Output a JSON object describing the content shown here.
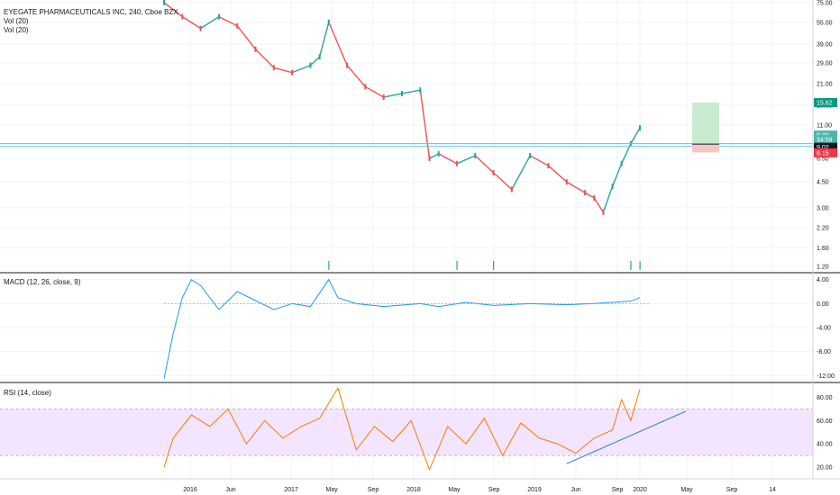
{
  "colors": {
    "up": "#26a69a",
    "down": "#ef5350",
    "macd_line": "#2196f3",
    "signal_line": "#ff6d00",
    "rsi_line": "#f57c00",
    "rsi_band": "#f3e5ff",
    "hline": "#4fc3f7",
    "trendline": "#4a90c8",
    "grid": "#f0f3fa",
    "separator": "#131722"
  },
  "chart_data": [
    {
      "type": "line",
      "panel": "price",
      "title": "EYEGATE PHARMACEUTICALS INC, 240, Cboe BZX",
      "indicators": [
        "Vol (20)",
        "Vol (20)"
      ],
      "y_scale": "log",
      "ylim": [
        1.1,
        78
      ],
      "y_ticks": [
        "75.00",
        "55.00",
        "39.00",
        "29.00",
        "21.00",
        "15.00",
        "11.00",
        "6.50",
        "4.50",
        "3.00",
        "2.20",
        "1.60",
        "1.20"
      ],
      "x_ticks": [
        "2016",
        "Jun",
        "2017",
        "May",
        "Sep",
        "2018",
        "May",
        "Sep",
        "2019",
        "Jun",
        "Sep",
        "2020",
        "May",
        "Sep",
        "14"
      ],
      "series": [
        {
          "x": [
            "2015-09",
            "2015-11",
            "2016-01",
            "2016-03",
            "2016-05",
            "2016-07",
            "2016-09",
            "2016-11",
            "2017-01",
            "2017-02",
            "2017-03",
            "2017-05",
            "2017-07",
            "2017-09",
            "2017-11",
            "2018-01",
            "2018-02",
            "2018-03",
            "2018-05",
            "2018-07",
            "2018-09",
            "2018-11",
            "2019-01",
            "2019-03",
            "2019-05",
            "2019-07",
            "2019-08",
            "2019-09",
            "2019-10",
            "2019-11",
            "2019-12",
            "2020-01"
          ],
          "values": [
            75,
            60,
            50,
            60,
            52,
            36,
            27,
            25,
            28,
            32,
            55,
            28,
            20,
            17,
            18,
            19,
            6.5,
            7,
            6,
            6.8,
            5.2,
            4,
            6.8,
            5.8,
            4.5,
            3.8,
            3.5,
            2.8,
            4.2,
            6.0,
            8.2,
            10.5
          ]
        }
      ],
      "annotations": [
        {
          "type": "horizontal_line",
          "value": 8.2
        },
        {
          "type": "horizontal_line",
          "value": 7.9
        },
        {
          "type": "long_position",
          "entry": 8.15,
          "target": 15.62,
          "stop": 7.15
        }
      ],
      "price_labels": [
        "15.62",
        "9.39",
        "34:59",
        "9.02",
        "8.15"
      ]
    },
    {
      "type": "line",
      "panel": "macd",
      "title": "MACD (12, 26, close, 9)",
      "ylim": [
        -13,
        5
      ],
      "y_ticks": [
        "4.00",
        "0.00",
        "-4.00",
        "-8.00",
        "-12.00"
      ],
      "series": [
        {
          "name": "MACD",
          "x": [
            "2015-09",
            "2015-10",
            "2015-11",
            "2015-12",
            "2016-01",
            "2016-03",
            "2016-05",
            "2016-07",
            "2016-09",
            "2016-11",
            "2017-01",
            "2017-03",
            "2017-04",
            "2017-06",
            "2017-09",
            "2018-01",
            "2018-03",
            "2018-06",
            "2018-09",
            "2019-01",
            "2019-05",
            "2019-09",
            "2019-12",
            "2020-01"
          ],
          "values": [
            -12.5,
            -5,
            1,
            4,
            3,
            -1,
            2,
            0.5,
            -1,
            0,
            -0.5,
            4,
            1,
            0,
            -0.5,
            0,
            -0.5,
            0.2,
            -0.3,
            0,
            -0.2,
            0.1,
            0.4,
            1.0
          ]
        }
      ]
    },
    {
      "type": "line",
      "panel": "rsi",
      "title": "RSI (14, close)",
      "ylim": [
        10,
        92
      ],
      "band": [
        30,
        70
      ],
      "y_ticks": [
        "80.00",
        "60.00",
        "40.00",
        "20.00"
      ],
      "series": [
        {
          "name": "RSI",
          "x": [
            "2015-09",
            "2015-10",
            "2015-12",
            "2016-02",
            "2016-04",
            "2016-06",
            "2016-08",
            "2016-10",
            "2016-12",
            "2017-02",
            "2017-04",
            "2017-06",
            "2017-08",
            "2017-10",
            "2017-12",
            "2018-02",
            "2018-04",
            "2018-06",
            "2018-08",
            "2018-10",
            "2018-12",
            "2019-02",
            "2019-04",
            "2019-06",
            "2019-08",
            "2019-10",
            "2019-11",
            "2019-12",
            "2020-01"
          ],
          "values": [
            20,
            45,
            65,
            55,
            70,
            40,
            60,
            45,
            55,
            62,
            88,
            35,
            55,
            42,
            60,
            18,
            55,
            40,
            62,
            30,
            58,
            45,
            40,
            32,
            45,
            52,
            78,
            60,
            87
          ]
        }
      ],
      "annotations": [
        {
          "type": "trendline",
          "from": {
            "x": "2019-05",
            "y": 23
          },
          "to": {
            "x": "2020-06",
            "y": 68
          }
        }
      ]
    }
  ]
}
